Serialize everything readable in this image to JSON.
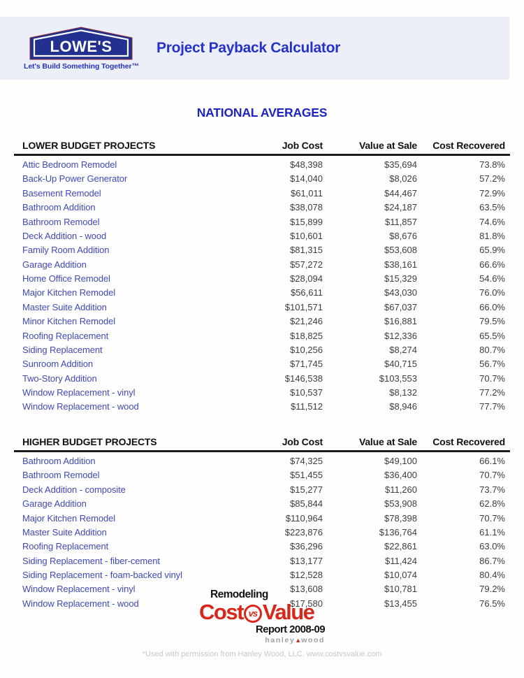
{
  "header": {
    "brand": "LOWE'S",
    "tagline": "Let's Build Something Together™",
    "title": "Project Payback Calculator"
  },
  "main": {
    "title": "NATIONAL AVERAGES"
  },
  "columns": [
    "Job Cost",
    "Value at Sale",
    "Cost Recovered"
  ],
  "tables": [
    {
      "section": "LOWER BUDGET PROJECTS",
      "rows": [
        [
          "Attic Bedroom Remodel",
          "$48,398",
          "$35,694",
          "73.8%"
        ],
        [
          "Back-Up Power Generator",
          "$14,040",
          "$8,026",
          "57.2%"
        ],
        [
          "Basement Remodel",
          "$61,011",
          "$44,467",
          "72.9%"
        ],
        [
          "Bathroom Addition",
          "$38,078",
          "$24,187",
          "63.5%"
        ],
        [
          "Bathroom Remodel",
          "$15,899",
          "$11,857",
          "74.6%"
        ],
        [
          "Deck Addition - wood",
          "$10,601",
          "$8,676",
          "81.8%"
        ],
        [
          "Family Room Addition",
          "$81,315",
          "$53,608",
          "65.9%"
        ],
        [
          "Garage Addition",
          "$57,272",
          "$38,161",
          "66.6%"
        ],
        [
          "Home Office Remodel",
          "$28,094",
          "$15,329",
          "54.6%"
        ],
        [
          "Major Kitchen Remodel",
          "$56,611",
          "$43,030",
          "76.0%"
        ],
        [
          "Master Suite Addition",
          "$101,571",
          "$67,037",
          "66.0%"
        ],
        [
          "Minor Kitchen Remodel",
          "$21,246",
          "$16,881",
          "79.5%"
        ],
        [
          "Roofing Replacement",
          "$18,825",
          "$12,336",
          "65.5%"
        ],
        [
          "Siding Replacement",
          "$10,256",
          "$8,274",
          "80.7%"
        ],
        [
          "Sunroom Addition",
          "$71,745",
          "$40,715",
          "56.7%"
        ],
        [
          "Two-Story Addition",
          "$146,538",
          "$103,553",
          "70.7%"
        ],
        [
          "Window Replacement - vinyl",
          "$10,537",
          "$8,132",
          "77.2%"
        ],
        [
          "Window Replacement - wood",
          "$11,512",
          "$8,946",
          "77.7%"
        ]
      ]
    },
    {
      "section": "HIGHER BUDGET PROJECTS",
      "rows": [
        [
          "Bathroom Addition",
          "$74,325",
          "$49,100",
          "66.1%"
        ],
        [
          "Bathroom Remodel",
          "$51,455",
          "$36,400",
          "70.7%"
        ],
        [
          "Deck Addition - composite",
          "$15,277",
          "$11,260",
          "73.7%"
        ],
        [
          "Garage Addition",
          "$85,844",
          "$53,908",
          "62.8%"
        ],
        [
          "Major Kitchen Remodel",
          "$110,964",
          "$78,398",
          "70.7%"
        ],
        [
          "Master Suite Addition",
          "$223,876",
          "$136,764",
          "61.1%"
        ],
        [
          "Roofing Replacement",
          "$36,296",
          "$22,861",
          "63.0%"
        ],
        [
          "Siding Replacement - fiber-cement",
          "$13,177",
          "$11,424",
          "86.7%"
        ],
        [
          "Siding Replacement - foam-backed vinyl",
          "$12,528",
          "$10,074",
          "80.4%"
        ],
        [
          "Window Replacement - vinyl",
          "$13,608",
          "$10,781",
          "79.2%"
        ],
        [
          "Window Replacement - wood",
          "$17,580",
          "$13,455",
          "76.5%"
        ]
      ]
    }
  ],
  "footer": {
    "remodeling": "Remodeling",
    "cost": "Cost",
    "vs": "vs",
    "value": "Value",
    "report": "Report 2008-09",
    "publisher_left": "hanley",
    "publisher_triangle": "▲",
    "publisher_right": "wood",
    "footnote": "*Used with permission from Hanley Wood, LLC. www.costvsvalue.com"
  },
  "colors": {
    "header_band": "#edeff8",
    "brand_navy": "#22318f",
    "accent_blue": "#2633c9",
    "row_label_blue": "#4049b6",
    "footer_red": "#d8271b",
    "footnote_gray": "#c4c7ce"
  }
}
